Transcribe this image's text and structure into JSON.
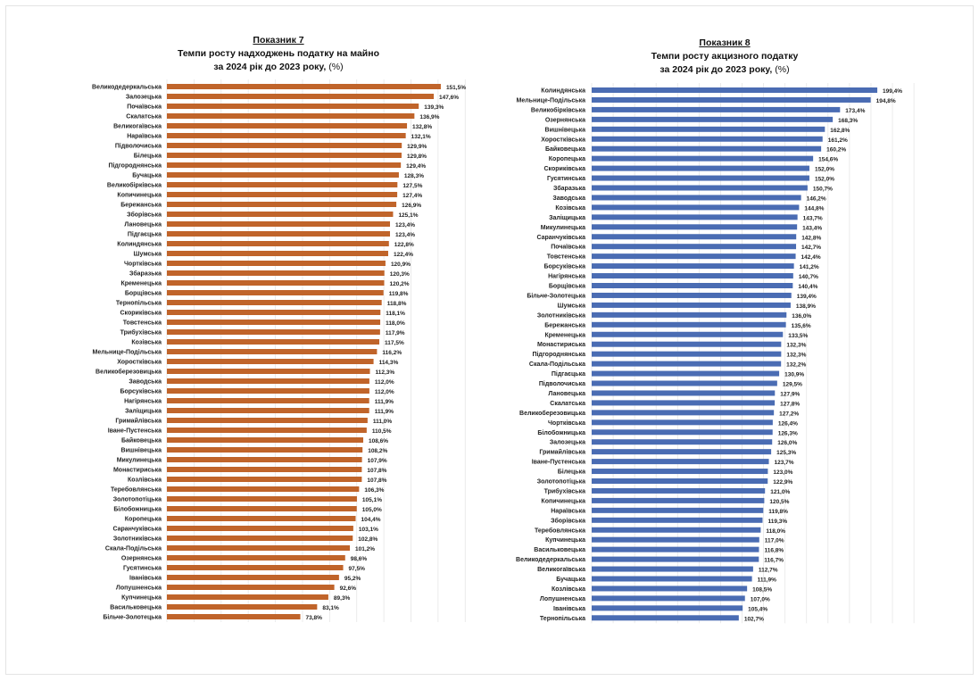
{
  "chart_data": [
    {
      "type": "bar",
      "orientation": "horizontal",
      "heading": "Показник 7",
      "title": "Темпи росту  надходжень податку на майно",
      "subtitle": "за 2024 рік до 2023 року,",
      "unit": "(%)",
      "color": "#C0642A",
      "xlim": [
        0,
        165
      ],
      "grid_step": 15,
      "grid": true,
      "categories": [
        "Великодедеркальська",
        "Залозецька",
        "Почаївська",
        "Скалатська",
        "Великогаївська",
        "Нараївська",
        "Підволочиська",
        "Білецька",
        "Підгороднянська",
        "Бучацька",
        "Великобірківська",
        "Копичинецька",
        "Бережанська",
        "Зборівська",
        "Лановецька",
        "Підгаєцька",
        "Колиндянська",
        "Шумська",
        "Чортківська",
        "Збаразька",
        "Кременецька",
        "Борщівська",
        "Тернопільська",
        "Скориківська",
        "Товстенська",
        "Трибухівська",
        "Козівська",
        "Мельнице-Подільська",
        "Хоростківська",
        "Великоберезовицька",
        "Заводська",
        "Борсуківська",
        "Нагірянська",
        "Заліщицька",
        "Гримайлівська",
        "Іване-Пустенська",
        "Байковецька",
        "Вишнівецька",
        "Микулинецька",
        "Монастириська",
        "Козлівська",
        "Теребовлянська",
        "Золотопотіцька",
        "Білобожницька",
        "Коропецька",
        "Саранчуківська",
        "Золотниківська",
        "Скала-Подільська",
        "Озернянська",
        "Гусятинська",
        "Іванівська",
        "Лопушненська",
        "Купчинецька",
        "Васильковецька",
        "Більче-Золотецька"
      ],
      "values": [
        151.5,
        147.6,
        139.3,
        136.9,
        132.8,
        132.1,
        129.9,
        129.8,
        129.4,
        128.3,
        127.5,
        127.4,
        126.9,
        125.1,
        123.4,
        123.4,
        122.8,
        122.4,
        120.9,
        120.3,
        120.2,
        119.8,
        118.8,
        118.1,
        118.0,
        117.9,
        117.5,
        116.2,
        114.3,
        112.3,
        112.0,
        112.0,
        111.9,
        111.9,
        111.0,
        110.5,
        108.6,
        108.2,
        107.9,
        107.8,
        107.8,
        106.3,
        105.1,
        105.0,
        104.4,
        103.1,
        102.8,
        101.2,
        98.6,
        97.5,
        95.2,
        92.6,
        89.3,
        83.1,
        73.8
      ],
      "labels": [
        "151,5%",
        "147,6%",
        "139,3%",
        "136,9%",
        "132,8%",
        "132,1%",
        "129,9%",
        "129,8%",
        "129,4%",
        "128,3%",
        "127,5%",
        "127,4%",
        "126,9%",
        "125,1%",
        "123,4%",
        "123,4%",
        "122,8%",
        "122,4%",
        "120,9%",
        "120,3%",
        "120,2%",
        "119,8%",
        "118,8%",
        "118,1%",
        "118,0%",
        "117,9%",
        "117,5%",
        "116,2%",
        "114,3%",
        "112,3%",
        "112,0%",
        "112,0%",
        "111,9%",
        "111,9%",
        "111,0%",
        "110,5%",
        "108,6%",
        "108,2%",
        "107,9%",
        "107,8%",
        "107,8%",
        "106,3%",
        "105,1%",
        "105,0%",
        "104,4%",
        "103,1%",
        "102,8%",
        "101,2%",
        "98,6%",
        "97,5%",
        "95,2%",
        "92,6%",
        "89,3%",
        "83,1%",
        "73,8%"
      ]
    },
    {
      "type": "bar",
      "orientation": "horizontal",
      "heading": "Показник 8",
      "title": "Темпи росту акцизного податку",
      "subtitle": "за 2024 рік до 2023 року,",
      "unit": "(%)",
      "color": "#4A6CB3",
      "xlim": [
        0,
        225
      ],
      "grid_step": 15,
      "grid": true,
      "categories": [
        "Колиндянська",
        "Мельнице-Подільська",
        "Великобірківська",
        "Озернянська",
        "Вишнівецька",
        "Хоростківська",
        "Байковецька",
        "Коропецька",
        "Скориківська",
        "Гусятинська",
        "Збаразька",
        "Заводська",
        "Козівська",
        "Заліщицька",
        "Микулинецька",
        "Саранчуківська",
        "Почаївська",
        "Товстенська",
        "Борсуківська",
        "Нагірянська",
        "Борщівська",
        "Більче-Золотецька",
        "Шумська",
        "Золотниківська",
        "Бережанська",
        "Кременецька",
        "Монастириська",
        "Підгороднянська",
        "Скала-Подільська",
        "Підгаєцька",
        "Підволочиська",
        "Лановецька",
        "Скалатська",
        "Великоберезовицька",
        "Чортківська",
        "Білобожницька",
        "Залозецька",
        "Гримайлівська",
        "Іване-Пустенська",
        "Білецька",
        "Золотопотіцька",
        "Трибухівська",
        "Копичинецька",
        "Нараївська",
        "Зборівська",
        "Теребовлянська",
        "Купчинецька",
        "Васильковецька",
        "Великодедеркальська",
        "Великогаївська",
        "Бучацька",
        "Козлівська",
        "Лопушненська",
        "Іванівська",
        "Тернопільська"
      ],
      "values": [
        199.4,
        194.8,
        173.4,
        168.3,
        162.8,
        161.2,
        160.2,
        154.6,
        152.0,
        152.0,
        150.7,
        146.2,
        144.8,
        143.7,
        143.4,
        142.8,
        142.7,
        142.4,
        141.2,
        140.7,
        140.4,
        139.4,
        138.9,
        136.0,
        135.6,
        133.5,
        132.3,
        132.3,
        132.2,
        130.9,
        129.5,
        127.9,
        127.8,
        127.2,
        126.4,
        126.3,
        126.0,
        125.3,
        123.7,
        123.0,
        122.9,
        121.0,
        120.5,
        119.8,
        119.3,
        118.0,
        117.0,
        116.8,
        116.7,
        112.7,
        111.9,
        108.5,
        107.0,
        105.4,
        102.7
      ],
      "labels": [
        "199,4%",
        "194,8%",
        "173,4%",
        "168,3%",
        "162,8%",
        "161,2%",
        "160,2%",
        "154,6%",
        "152,0%",
        "152,0%",
        "150,7%",
        "146,2%",
        "144,8%",
        "143,7%",
        "143,4%",
        "142,8%",
        "142,7%",
        "142,4%",
        "141,2%",
        "140,7%",
        "140,4%",
        "139,4%",
        "138,9%",
        "136,0%",
        "135,6%",
        "133,5%",
        "132,3%",
        "132,3%",
        "132,2%",
        "130,9%",
        "129,5%",
        "127,9%",
        "127,8%",
        "127,2%",
        "126,4%",
        "126,3%",
        "126,0%",
        "125,3%",
        "123,7%",
        "123,0%",
        "122,9%",
        "121,0%",
        "120,5%",
        "119,8%",
        "119,3%",
        "118,0%",
        "117,0%",
        "116,8%",
        "116,7%",
        "112,7%",
        "111,9%",
        "108,5%",
        "107,0%",
        "105,4%",
        "102,7%"
      ]
    }
  ]
}
